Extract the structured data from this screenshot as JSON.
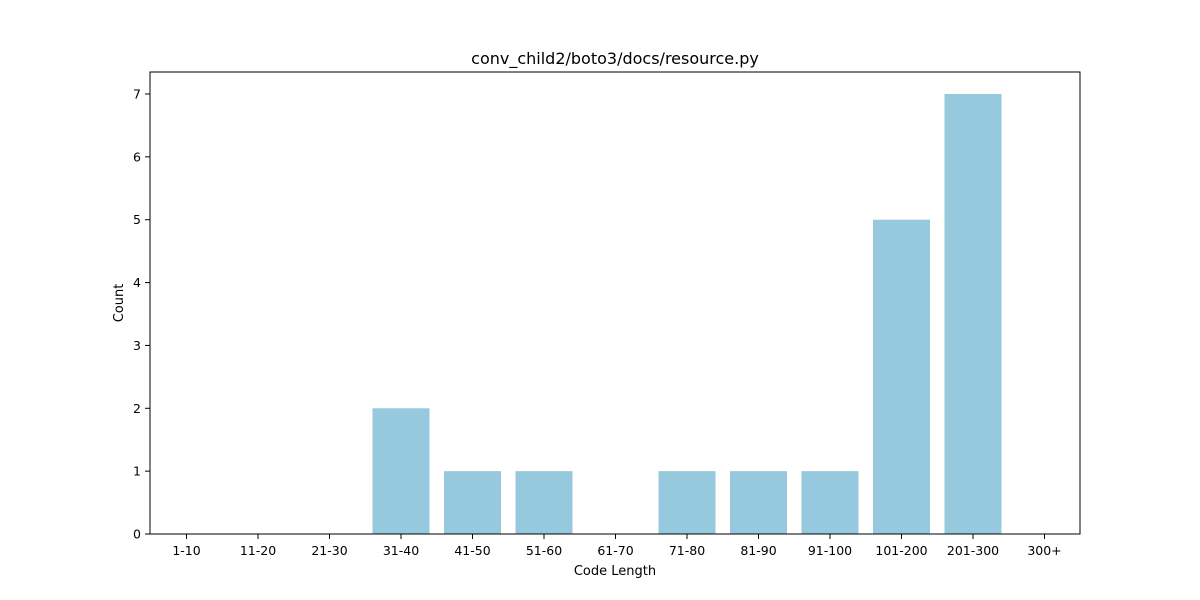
{
  "chart_data": {
    "type": "bar",
    "title": "conv_child2/boto3/docs/resource.py",
    "xlabel": "Code Length",
    "ylabel": "Count",
    "categories": [
      "1-10",
      "11-20",
      "21-30",
      "31-40",
      "41-50",
      "51-60",
      "61-70",
      "71-80",
      "81-90",
      "91-100",
      "101-200",
      "201-300",
      "300+"
    ],
    "values": [
      0,
      0,
      0,
      2,
      1,
      1,
      0,
      1,
      1,
      1,
      5,
      7,
      0
    ],
    "ylim": [
      0,
      7.35
    ],
    "yticks": [
      "0",
      "1",
      "2",
      "3",
      "4",
      "5",
      "6",
      "7"
    ],
    "bar_color": "#96c9dd",
    "grid": false,
    "legend": "none"
  }
}
